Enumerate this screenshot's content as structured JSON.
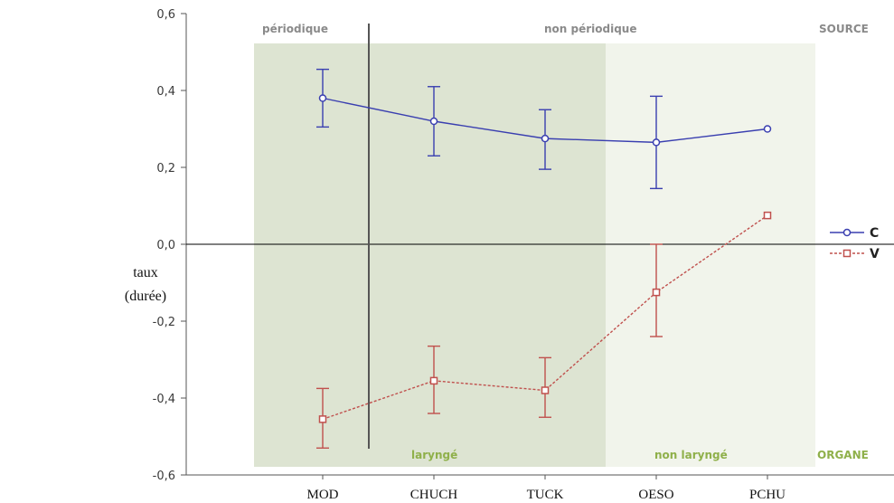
{
  "chart_data": {
    "type": "line",
    "categories": [
      "MOD",
      "CHUCH",
      "TUCK",
      "OESO",
      "PCHU"
    ],
    "ylabel_lines": [
      "taux",
      "(durée)"
    ],
    "ylim": [
      -0.6,
      0.6
    ],
    "y_ticks": [
      "0,6",
      "0,4",
      "0,2",
      "0,0",
      "-0,2",
      "-0,4",
      "-0,6"
    ],
    "grid": false,
    "legend_position": "right",
    "series": [
      {
        "name": "C",
        "color": "#3a3fb0",
        "marker": "circle",
        "line": "solid",
        "values": [
          0.38,
          0.32,
          0.275,
          0.265,
          0.3
        ],
        "err_low": [
          0.305,
          0.23,
          0.195,
          0.145,
          null
        ],
        "err_high": [
          0.455,
          0.41,
          0.35,
          0.385,
          null
        ]
      },
      {
        "name": "V",
        "color": "#c0504d",
        "marker": "square",
        "line": "dashed",
        "values": [
          -0.455,
          -0.355,
          -0.38,
          -0.125,
          0.075
        ],
        "err_low": [
          -0.53,
          -0.44,
          -0.45,
          -0.24,
          null
        ],
        "err_high": [
          -0.375,
          -0.265,
          -0.295,
          0.0,
          null
        ]
      }
    ],
    "annotations": {
      "source_label": "SOURCE",
      "organ_label": "ORGANE",
      "periodique": "périodique",
      "non_periodique": "non périodique",
      "larynge": "laryngé",
      "non_larynge": "non laryngé"
    },
    "colors": {
      "band_dark": "#dde4d2",
      "band_light": "#f1f4eb",
      "gray_label": "#8a8a8a",
      "green_label": "#8fb04a"
    }
  }
}
